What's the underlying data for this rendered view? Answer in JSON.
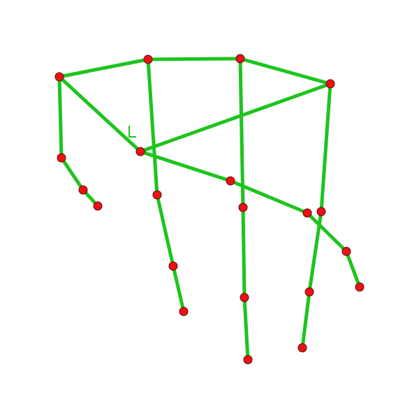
{
  "diagram": {
    "type": "hand-keypoint-skeleton",
    "colors": {
      "bone": "#1ec41e",
      "joint_fill": "#ee1111",
      "joint_stroke": "#551111",
      "background": "#ffffff"
    },
    "joints": [
      {
        "id": "wrist-anchor"
      },
      {
        "id": "index-base"
      },
      {
        "id": "middle-base"
      },
      {
        "id": "ring-base"
      },
      {
        "id": "palm-center"
      },
      {
        "id": "thumb-1"
      },
      {
        "id": "thumb-2"
      },
      {
        "id": "thumb-tip"
      },
      {
        "id": "index-1"
      },
      {
        "id": "index-2"
      },
      {
        "id": "index-tip"
      },
      {
        "id": "middle-1"
      },
      {
        "id": "middle-2"
      },
      {
        "id": "middle-tip"
      },
      {
        "id": "ring-1"
      },
      {
        "id": "ring-2"
      },
      {
        "id": "ring-tip"
      },
      {
        "id": "pinky-1"
      },
      {
        "id": "pinky-2"
      },
      {
        "id": "pinky-3"
      },
      {
        "id": "pinky-tip"
      }
    ],
    "bones": [
      [
        "wrist-anchor",
        "index-base"
      ],
      [
        "index-base",
        "middle-base"
      ],
      [
        "middle-base",
        "ring-base"
      ],
      [
        "wrist-anchor",
        "palm-center"
      ],
      [
        "palm-center",
        "ring-base"
      ],
      [
        "wrist-anchor",
        "thumb-1"
      ],
      [
        "thumb-1",
        "thumb-2"
      ],
      [
        "thumb-2",
        "thumb-tip"
      ],
      [
        "index-base",
        "index-1"
      ],
      [
        "index-1",
        "index-2"
      ],
      [
        "index-2",
        "index-tip"
      ],
      [
        "middle-base",
        "middle-1"
      ],
      [
        "middle-1",
        "middle-2"
      ],
      [
        "middle-2",
        "middle-tip"
      ],
      [
        "ring-base",
        "ring-1"
      ],
      [
        "ring-1",
        "ring-2"
      ],
      [
        "ring-2",
        "ring-tip"
      ],
      [
        "palm-center",
        "pinky-1"
      ],
      [
        "pinky-1",
        "pinky-2"
      ],
      [
        "pinky-2",
        "pinky-3"
      ],
      [
        "pinky-3",
        "pinky-tip"
      ]
    ]
  }
}
